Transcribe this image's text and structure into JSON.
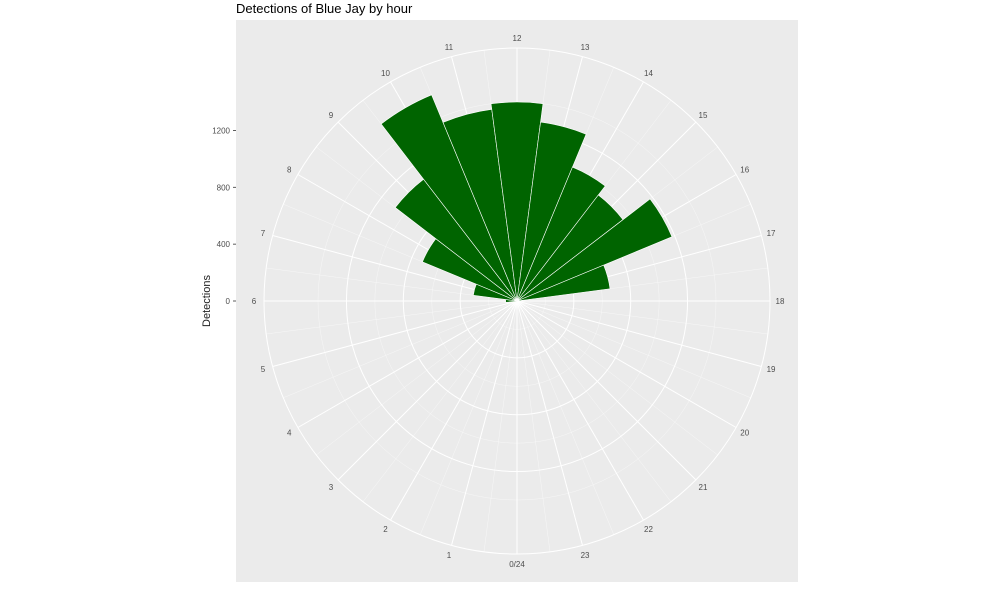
{
  "chart_data": {
    "type": "bar",
    "coord": "polar",
    "title": "Detections of Blue Jay by hour",
    "xlabel": "",
    "ylabel": "Detections",
    "x_ticks": [
      "0/24",
      "1",
      "2",
      "3",
      "4",
      "5",
      "6",
      "7",
      "8",
      "9",
      "10",
      "11",
      "12",
      "13",
      "14",
      "15",
      "16",
      "17",
      "18",
      "19",
      "20",
      "21",
      "22",
      "23"
    ],
    "y_ticks": [
      0,
      400,
      800,
      1200
    ],
    "ylim": [
      0,
      1780
    ],
    "categories": [
      6,
      7,
      8,
      9,
      10,
      11,
      12,
      13,
      14,
      15,
      16,
      17
    ],
    "values": [
      80,
      310,
      720,
      1080,
      1570,
      1360,
      1400,
      1270,
      1020,
      940,
      1180,
      660
    ],
    "bar_color": "#006400",
    "panel_color": "#ebebeb",
    "grid_color": "#ffffff"
  }
}
